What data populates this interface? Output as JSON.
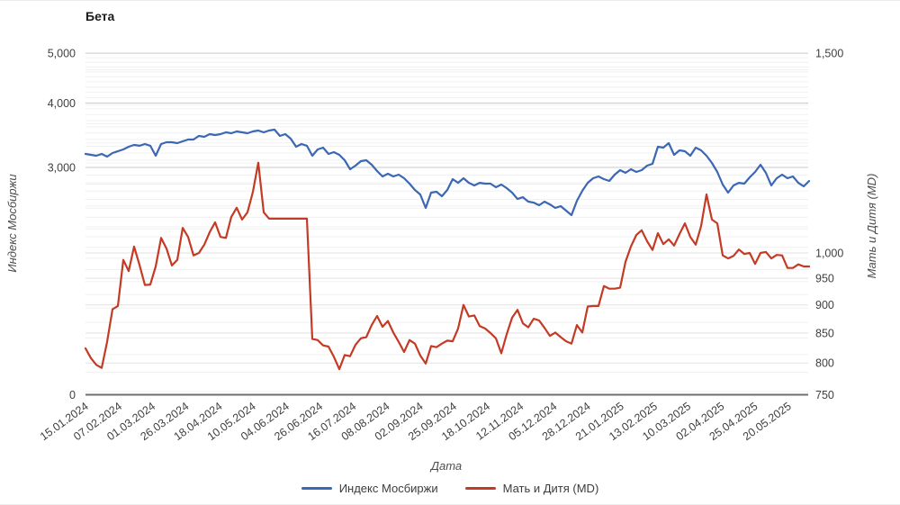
{
  "title": "Бета",
  "chart_data": {
    "type": "line",
    "title": "Бета",
    "legend_position": "bottom",
    "grid": "horizontal, log minor gridlines, no vertical gridlines",
    "x_axis": {
      "title": "Дата",
      "labels": [
        "15.01.2024",
        "07.02.2024",
        "01.03.2024",
        "26.03.2024",
        "18.04.2024",
        "10.05.2024",
        "04.06.2024",
        "26.06.2024",
        "16.07.2024",
        "08.08.2024",
        "02.09.2024",
        "25.09.2024",
        "18.10.2024",
        "12.11.2024",
        "05.12.2024",
        "28.12.2024",
        "21.01.2025",
        "13.02.2025",
        "10.03.2025",
        "02.04.2025",
        "25.04.2025",
        "20.05.2025"
      ]
    },
    "left_axis": {
      "title": "Индекс Мосбиржи",
      "scale": "log",
      "ticks": [
        {
          "label": "5,000",
          "value": 5000
        },
        {
          "label": "4,000",
          "value": 4000
        },
        {
          "label": "3,000",
          "value": 3000
        },
        {
          "label": "0",
          "value": 0
        }
      ]
    },
    "right_axis": {
      "title": "Мать и Дитя (MD)",
      "scale": "log",
      "ticks": [
        {
          "label": "1,500",
          "value": 1500
        },
        {
          "label": "1,000",
          "value": 1000
        },
        {
          "label": "950",
          "value": 950
        },
        {
          "label": "900",
          "value": 900
        },
        {
          "label": "850",
          "value": 850
        },
        {
          "label": "800",
          "value": 800
        },
        {
          "label": "750",
          "value": 750
        }
      ]
    },
    "series": [
      {
        "name": "Индекс Мосбиржи",
        "axis": "left",
        "color": "#3b67b3",
        "values": [
          3187,
          3174,
          3161,
          3187,
          3149,
          3200,
          3226,
          3252,
          3291,
          3318,
          3305,
          3331,
          3305,
          3161,
          3331,
          3358,
          3358,
          3345,
          3372,
          3399,
          3399,
          3454,
          3440,
          3482,
          3468,
          3482,
          3510,
          3496,
          3524,
          3510,
          3496,
          3524,
          3539,
          3510,
          3539,
          3553,
          3454,
          3482,
          3413,
          3291,
          3331,
          3305,
          3161,
          3252,
          3278,
          3187,
          3213,
          3174,
          3098,
          2976,
          3024,
          3086,
          3098,
          3036,
          2952,
          2882,
          2917,
          2882,
          2905,
          2858,
          2790,
          2713,
          2658,
          2503,
          2680,
          2691,
          2637,
          2713,
          2847,
          2801,
          2858,
          2801,
          2768,
          2801,
          2790,
          2790,
          2746,
          2779,
          2735,
          2680,
          2605,
          2626,
          2574,
          2563,
          2533,
          2574,
          2543,
          2503,
          2523,
          2473,
          2424,
          2584,
          2702,
          2801,
          2858,
          2882,
          2847,
          2824,
          2905,
          2964,
          2928,
          2976,
          2940,
          2964,
          3024,
          3049,
          3291,
          3278,
          3345,
          3174,
          3239,
          3226,
          3161,
          3278,
          3239,
          3161,
          3061,
          2940,
          2779,
          2680,
          2768,
          2801,
          2790,
          2870,
          2940,
          3036,
          2928,
          2768,
          2858,
          2905,
          2858,
          2882,
          2801,
          2757,
          2823
        ]
      },
      {
        "name": "Мать и Дитя (MD)",
        "axis": "right",
        "color": "#c43b25",
        "values": [
          824,
          808,
          797,
          792,
          835,
          892,
          898,
          986,
          964,
          1013,
          976,
          937,
          938,
          973,
          1031,
          1009,
          975,
          986,
          1052,
          1033,
          995,
          1000,
          1017,
          1043,
          1064,
          1033,
          1031,
          1076,
          1096,
          1070,
          1086,
          1132,
          1201,
          1086,
          1072,
          1072,
          1072,
          1072,
          1072,
          1072,
          1072,
          1072,
          840,
          838,
          829,
          827,
          810,
          790,
          813,
          811,
          830,
          841,
          843,
          864,
          880,
          861,
          871,
          851,
          835,
          818,
          838,
          832,
          812,
          799,
          828,
          826,
          832,
          837,
          836,
          858,
          900,
          879,
          881,
          862,
          858,
          850,
          841,
          816,
          848,
          877,
          891,
          867,
          860,
          875,
          872,
          859,
          845,
          851,
          843,
          836,
          832,
          864,
          851,
          897,
          898,
          898,
          935,
          930,
          930,
          932,
          982,
          1013,
          1037,
          1047,
          1024,
          1006,
          1041,
          1018,
          1028,
          1015,
          1039,
          1062,
          1033,
          1017,
          1056,
          1126,
          1070,
          1062,
          995,
          989,
          994,
          1007,
          998,
          1000,
          978,
          1000,
          1002,
          989,
          996,
          995,
          970,
          970,
          977,
          973,
          973
        ]
      }
    ]
  }
}
